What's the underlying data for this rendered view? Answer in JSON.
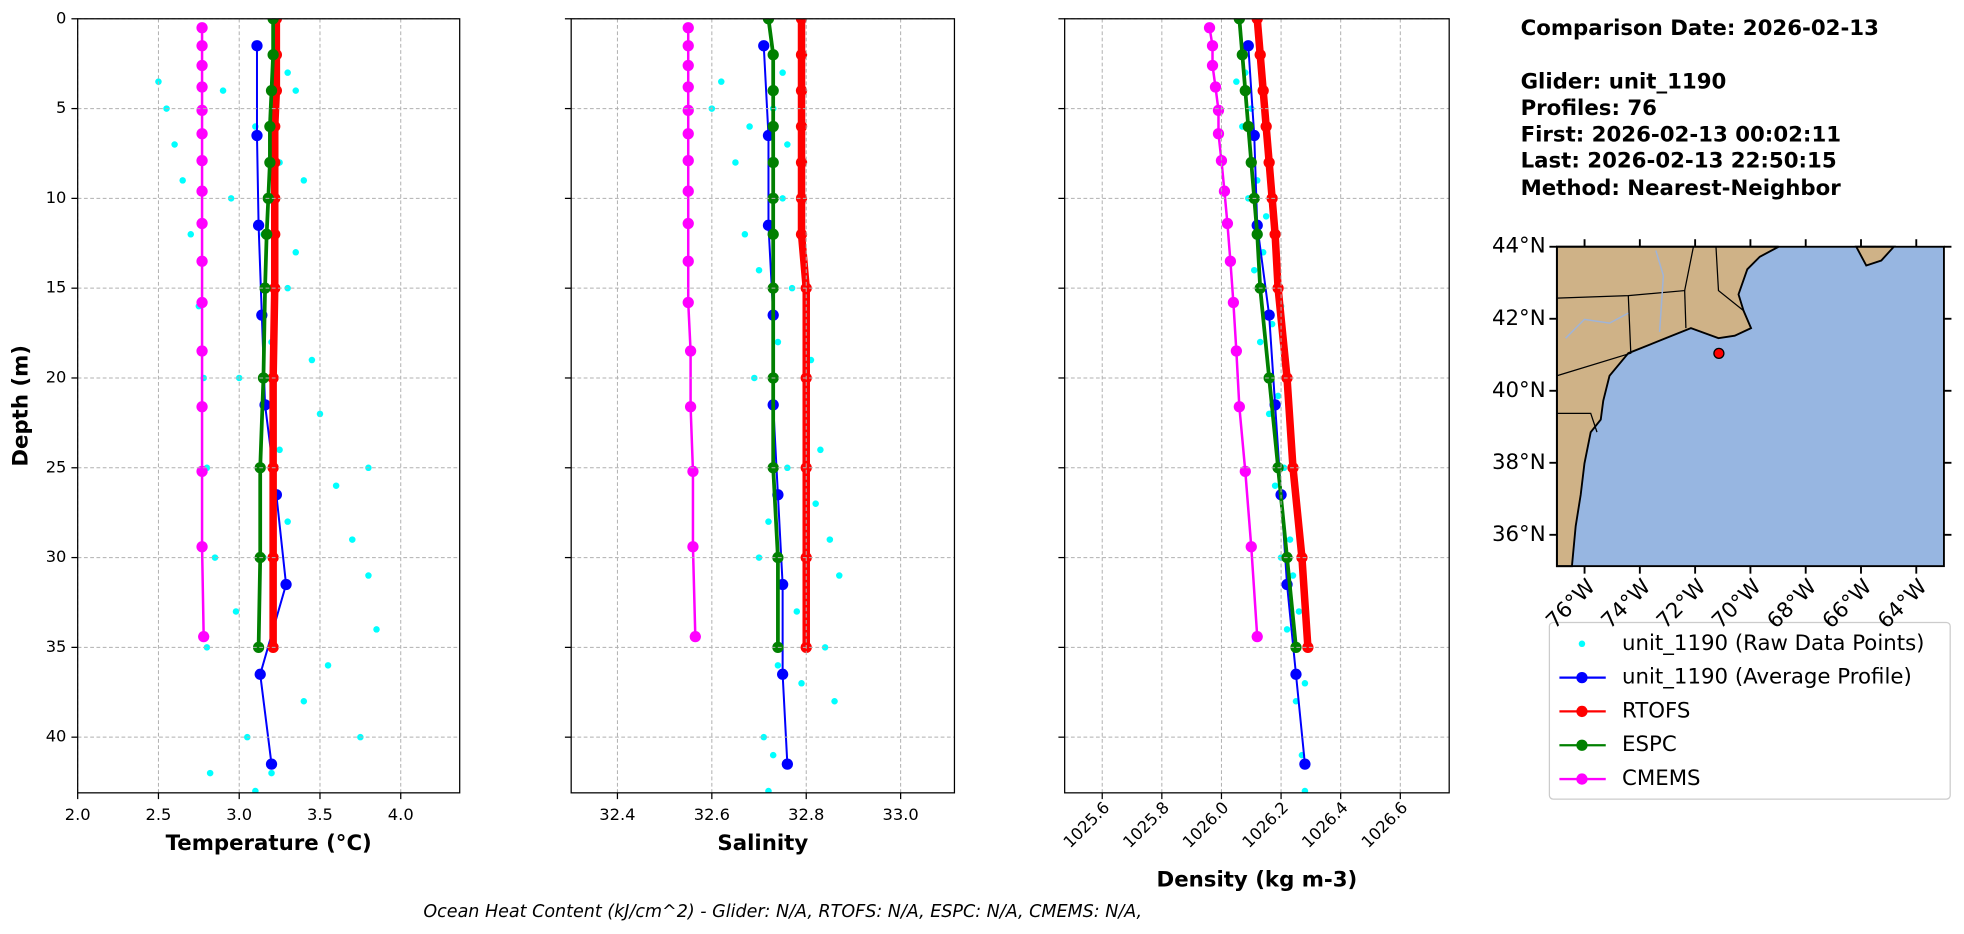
{
  "chart_data": [
    {
      "type": "line",
      "xlabel": "Temperature (°C)",
      "ylabel": "Depth (m)",
      "xlim": [
        2.0,
        4.365
      ],
      "ylim": [
        43.1,
        0
      ],
      "xticks": [
        {
          "value": 2.0,
          "label": "2.0"
        },
        2.5,
        {
          "value": 3.0,
          "label": "3.0"
        },
        3.5,
        {
          "value": 4.0,
          "label": "4.0"
        }
      ],
      "yticks": [
        0,
        5,
        10,
        15,
        20,
        25,
        30,
        35,
        40
      ],
      "grid": true,
      "series": [
        {
          "name": "unit_1190 (Raw Data Points)",
          "color": "#00ffff",
          "style": "scatter",
          "values": [
            2.5,
            2.55,
            2.6,
            2.65,
            2.7,
            2.75,
            2.78,
            2.8,
            2.85,
            2.8,
            2.82,
            2.9,
            2.95,
            3.0,
            2.98,
            3.05,
            3.1,
            3.15,
            3.2,
            3.25,
            3.3,
            3.35,
            3.4,
            3.3,
            3.45,
            3.5,
            3.6,
            3.7,
            3.8,
            3.85,
            3.75,
            3.8,
            3.55,
            3.4,
            3.3,
            3.2,
            3.25,
            3.35,
            3.15,
            3.1
          ],
          "y": [
            3.5,
            5,
            7,
            9,
            12,
            16,
            20,
            25,
            30,
            35,
            42,
            4,
            10,
            20,
            33,
            40,
            6,
            12,
            18,
            24,
            28,
            4,
            9,
            15,
            19,
            22,
            26,
            29,
            31,
            34,
            40,
            25,
            36,
            38,
            3,
            42,
            8,
            13,
            30,
            43
          ]
        },
        {
          "name": "unit_1190 (Average Profile)",
          "color": "#0000ff",
          "style": "line",
          "values": [
            3.11,
            3.11,
            3.12,
            3.14,
            3.16,
            3.23,
            3.29,
            3.13,
            3.2
          ],
          "y": [
            1.5,
            6.5,
            11.5,
            16.5,
            21.5,
            26.5,
            31.5,
            36.5,
            41.5
          ]
        },
        {
          "name": "RTOFS",
          "color": "#ff0000",
          "style": "line",
          "values": [
            3.23,
            3.23,
            3.23,
            3.22,
            3.22,
            3.22,
            3.22,
            3.22,
            3.21,
            3.21,
            3.21,
            3.21
          ],
          "y": [
            0,
            2,
            4,
            6,
            8,
            10,
            12,
            15,
            20,
            25,
            30,
            35
          ]
        },
        {
          "name": "ESPC",
          "color": "#008000",
          "style": "line",
          "values": [
            3.21,
            3.21,
            3.2,
            3.19,
            3.19,
            3.18,
            3.17,
            3.16,
            3.15,
            3.13,
            3.13,
            3.12
          ],
          "y": [
            0,
            2,
            4,
            6,
            8,
            10,
            12,
            15,
            20,
            25,
            30,
            35
          ]
        },
        {
          "name": "CMEMS",
          "color": "#ff00ff",
          "style": "line",
          "values": [
            2.77,
            2.77,
            2.77,
            2.77,
            2.77,
            2.77,
            2.77,
            2.77,
            2.77,
            2.77,
            2.77,
            2.77,
            2.77,
            2.77,
            2.77,
            2.78
          ],
          "y": [
            0.5,
            1.5,
            2.6,
            3.8,
            5.1,
            6.4,
            7.9,
            9.6,
            11.4,
            13.5,
            15.8,
            18.5,
            21.6,
            25.2,
            29.4,
            34.4
          ]
        }
      ]
    },
    {
      "type": "line",
      "xlabel": "Salinity",
      "xlim": [
        32.302,
        33.114
      ],
      "ylim": [
        43.1,
        0
      ],
      "xticks": [
        32.4,
        32.6,
        32.8,
        {
          "value": 33.0,
          "label": "33.0"
        }
      ],
      "grid": true,
      "series": [
        {
          "color": "#00ffff",
          "style": "scatter",
          "values": [
            32.6,
            32.62,
            32.65,
            32.67,
            32.69,
            32.7,
            32.71,
            32.72,
            32.73,
            32.75,
            32.74,
            32.76,
            32.78,
            32.8,
            32.82,
            32.85,
            32.87,
            32.86,
            32.84,
            32.79,
            32.77,
            32.75,
            32.72,
            32.7,
            32.68,
            32.73,
            32.81,
            32.83,
            32.76,
            32.74
          ],
          "y": [
            5,
            3.5,
            8,
            12,
            20,
            30,
            40,
            43,
            5,
            10,
            18,
            25,
            33,
            22,
            27,
            29,
            31,
            38,
            35,
            37,
            15,
            3,
            28,
            14,
            6,
            41,
            19,
            24,
            7,
            36
          ]
        },
        {
          "color": "#0000ff",
          "style": "line",
          "values": [
            32.71,
            32.72,
            32.72,
            32.73,
            32.73,
            32.74,
            32.75,
            32.75,
            32.76
          ],
          "y": [
            1.5,
            6.5,
            11.5,
            16.5,
            21.5,
            26.5,
            31.5,
            36.5,
            41.5
          ]
        },
        {
          "color": "#ff0000",
          "style": "line",
          "values": [
            32.79,
            32.79,
            32.79,
            32.79,
            32.79,
            32.79,
            32.79,
            32.8,
            32.8,
            32.8,
            32.8,
            32.8
          ],
          "y": [
            0,
            2,
            4,
            6,
            8,
            10,
            12,
            15,
            20,
            25,
            30,
            35
          ]
        },
        {
          "color": "#008000",
          "style": "line",
          "values": [
            32.72,
            32.73,
            32.73,
            32.73,
            32.73,
            32.73,
            32.73,
            32.73,
            32.73,
            32.73,
            32.74,
            32.74
          ],
          "y": [
            0,
            2,
            4,
            6,
            8,
            10,
            12,
            15,
            20,
            25,
            30,
            35
          ]
        },
        {
          "color": "#ff00ff",
          "style": "line",
          "values": [
            32.55,
            32.55,
            32.55,
            32.55,
            32.55,
            32.55,
            32.55,
            32.55,
            32.55,
            32.55,
            32.55,
            32.555,
            32.555,
            32.56,
            32.56,
            32.565
          ],
          "y": [
            0.5,
            1.5,
            2.6,
            3.8,
            5.1,
            6.4,
            7.9,
            9.6,
            11.4,
            13.5,
            15.8,
            18.5,
            21.6,
            25.2,
            29.4,
            34.4
          ]
        }
      ]
    },
    {
      "type": "line",
      "xlabel": "Density (kg m-3)",
      "xlim": [
        1025.474,
        1026.764
      ],
      "ylim": [
        43.1,
        0
      ],
      "xticks": [
        1025.6,
        1025.8,
        {
          "value": 1026.0,
          "label": "1026.0"
        },
        1026.2,
        1026.4,
        1026.6
      ],
      "grid": true,
      "series": [
        {
          "color": "#00ffff",
          "style": "scatter",
          "values": [
            1026.05,
            1026.08,
            1026.07,
            1026.1,
            1026.09,
            1026.12,
            1026.11,
            1026.14,
            1026.13,
            1026.17,
            1026.16,
            1026.19,
            1026.18,
            1026.21,
            1026.2,
            1026.23,
            1026.22,
            1026.26,
            1026.25,
            1026.28,
            1026.27,
            1026.28,
            1026.15,
            1026.2,
            1026.24
          ],
          "y": [
            3.5,
            3,
            6,
            5,
            10,
            9,
            14,
            13,
            18,
            17,
            22,
            21,
            26,
            25,
            30,
            29,
            34,
            33,
            38,
            37,
            41,
            43,
            11,
            16,
            31
          ]
        },
        {
          "color": "#0000ff",
          "style": "line",
          "values": [
            1026.09,
            1026.11,
            1026.12,
            1026.16,
            1026.18,
            1026.2,
            1026.22,
            1026.25,
            1026.28
          ],
          "y": [
            1.5,
            6.5,
            11.5,
            16.5,
            21.5,
            26.5,
            31.5,
            36.5,
            41.5
          ]
        },
        {
          "color": "#ff0000",
          "style": "line",
          "values": [
            1026.12,
            1026.13,
            1026.14,
            1026.15,
            1026.16,
            1026.17,
            1026.18,
            1026.19,
            1026.22,
            1026.24,
            1026.27,
            1026.29
          ],
          "y": [
            0,
            2,
            4,
            6,
            8,
            10,
            12,
            15,
            20,
            25,
            30,
            35
          ]
        },
        {
          "color": "#008000",
          "style": "line",
          "values": [
            1026.06,
            1026.07,
            1026.08,
            1026.09,
            1026.1,
            1026.11,
            1026.12,
            1026.13,
            1026.16,
            1026.19,
            1026.22,
            1026.25
          ],
          "y": [
            0,
            2,
            4,
            6,
            8,
            10,
            12,
            15,
            20,
            25,
            30,
            35
          ]
        },
        {
          "color": "#ff00ff",
          "style": "line",
          "values": [
            1025.96,
            1025.97,
            1025.97,
            1025.98,
            1025.99,
            1025.99,
            1026.0,
            1026.01,
            1026.02,
            1026.03,
            1026.04,
            1026.05,
            1026.06,
            1026.08,
            1026.1,
            1026.12
          ],
          "y": [
            0.5,
            1.5,
            2.6,
            3.8,
            5.1,
            6.4,
            7.9,
            9.6,
            11.4,
            13.5,
            15.8,
            18.5,
            21.6,
            25.2,
            29.4,
            34.4
          ]
        }
      ]
    },
    {
      "type": "map",
      "xlim": [
        -77.0,
        -63.0
      ],
      "ylim": [
        35.13,
        44.0
      ],
      "xticks": [
        {
          "value": -76,
          "label": "76°W"
        },
        {
          "value": -74,
          "label": "74°W"
        },
        {
          "value": -72,
          "label": "72°W"
        },
        {
          "value": -70,
          "label": "70°W"
        },
        {
          "value": -68,
          "label": "68°W"
        },
        {
          "value": -66,
          "label": "66°W"
        },
        {
          "value": -64,
          "label": "64°W"
        }
      ],
      "yticks": [
        {
          "value": 44,
          "label": "44°N"
        },
        {
          "value": 42,
          "label": "42°N"
        },
        {
          "value": 40,
          "label": "40°N"
        },
        {
          "value": 38,
          "label": "38°N"
        },
        {
          "value": 36,
          "label": "36°N"
        }
      ],
      "location": {
        "lon": -71.14,
        "lat": 41.04,
        "color": "#ff0000"
      }
    }
  ],
  "info": {
    "lines": [
      "Comparison Date: 2026-02-13",
      "Glider: unit_1190",
      "Profiles: 76",
      "First: 2026-02-13 00:02:11",
      "Last: 2026-02-13 22:50:15",
      "Method: Nearest-Neighbor"
    ]
  },
  "footer": "Ocean Heat Content (kJ/cm^2) - Glider: N/A,  RTOFS: N/A,  ESPC: N/A,  CMEMS: N/A,"
}
